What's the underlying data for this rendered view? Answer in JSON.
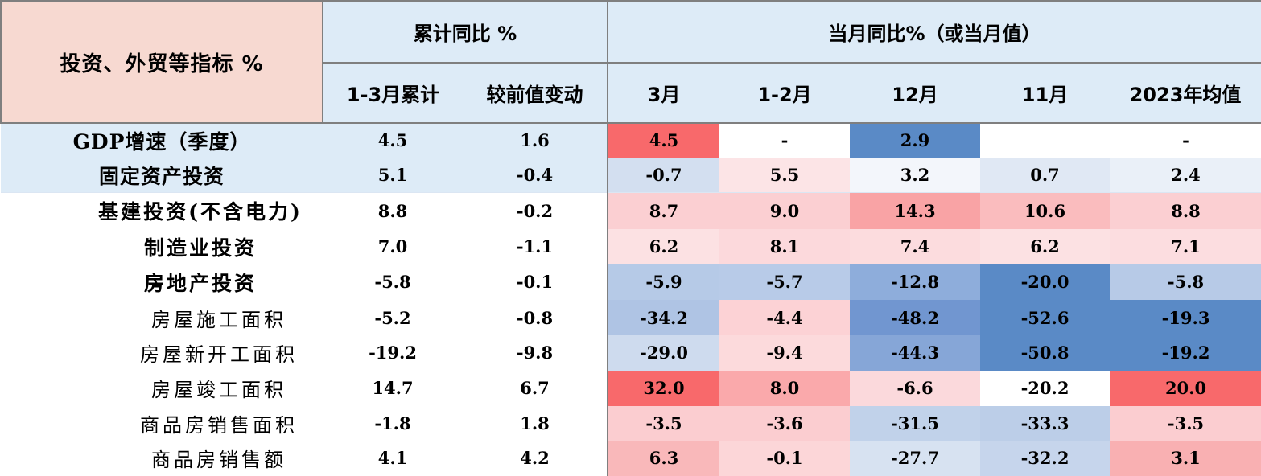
{
  "table": {
    "corner_label": "投资、外贸等指标 %",
    "group_headers": {
      "cumulative": "累计同比 %",
      "monthly": "当月同比%（或当月值）"
    },
    "column_headers": [
      "1-3月累计",
      "较前值变动",
      "3月",
      "1-2月",
      "12月",
      "11月",
      "2023年均值"
    ],
    "rows": [
      {
        "label": "GDP增速（季度）",
        "level": 0,
        "highlight": true,
        "cells": [
          "4.5",
          "1.6",
          "4.5",
          "-",
          "2.9",
          "",
          "-"
        ],
        "colors": [
          "",
          "",
          "#f8696b",
          "#ffffff",
          "#5a8ac6",
          "#ffffff",
          "#ffffff"
        ]
      },
      {
        "label": "固定资产投资",
        "level": 0,
        "highlight": true,
        "cells": [
          "5.1",
          "-0.4",
          "-0.7",
          "5.5",
          "3.2",
          "0.7",
          "2.4"
        ],
        "colors": [
          "",
          "",
          "#d3dff0",
          "#fce4e6",
          "#f3f6fb",
          "#e0e8f4",
          "#eaf0f8"
        ]
      },
      {
        "label": "基建投资(不含电力)",
        "level": 1,
        "highlight": false,
        "cells": [
          "8.8",
          "-0.2",
          "8.7",
          "9.0",
          "14.3",
          "10.6",
          "8.8"
        ],
        "colors": [
          "",
          "",
          "#fbcfd2",
          "#fbcfd2",
          "#f9a3a5",
          "#fabcbe",
          "#fbcfd2"
        ]
      },
      {
        "label": "制造业投资",
        "level": 1,
        "highlight": false,
        "cells": [
          "7.0",
          "-1.1",
          "6.2",
          "8.1",
          "7.4",
          "6.2",
          "7.1"
        ],
        "colors": [
          "",
          "",
          "#fce1e3",
          "#fcd9dc",
          "#fcdcde",
          "#fce1e3",
          "#fcdde0"
        ]
      },
      {
        "label": "房地产投资",
        "level": 1,
        "highlight": false,
        "cells": [
          "-5.8",
          "-0.1",
          "-5.9",
          "-5.7",
          "-12.8",
          "-20.0",
          "-5.8"
        ],
        "colors": [
          "",
          "",
          "#b6cae7",
          "#b8cbe8",
          "#8eaddb",
          "#5a8ac6",
          "#b7cae7"
        ]
      },
      {
        "label": "房屋施工面积",
        "level": 2,
        "highlight": false,
        "cells": [
          "-5.2",
          "-0.8",
          "-34.2",
          "-4.4",
          "-48.2",
          "-52.6",
          "-19.3"
        ],
        "colors": [
          "",
          "",
          "#afc4e4",
          "#fcd2d5",
          "#7196d0",
          "#5a8ac6",
          "#5a8ac6"
        ]
      },
      {
        "label": "房屋新开工面积",
        "level": 2,
        "highlight": false,
        "cells": [
          "-19.2",
          "-9.8",
          "-29.0",
          "-9.4",
          "-44.3",
          "-50.8",
          "-19.2"
        ],
        "colors": [
          "",
          "",
          "#cedbee",
          "#fcdadc",
          "#86a6d7",
          "#5a8ac6",
          "#5a8ac6"
        ]
      },
      {
        "label": "房屋竣工面积",
        "level": 2,
        "highlight": false,
        "cells": [
          "14.7",
          "6.7",
          "32.0",
          "8.0",
          "-6.6",
          "-20.2",
          "20.0"
        ],
        "colors": [
          "",
          "",
          "#f8696b",
          "#faa9ab",
          "#fbd9dc",
          "#ffffff",
          "#f8696b"
        ]
      },
      {
        "label": "商品房销售面积",
        "level": 2,
        "highlight": false,
        "cells": [
          "-1.8",
          "1.8",
          "-3.5",
          "-3.6",
          "-31.5",
          "-33.3",
          "-3.5"
        ],
        "colors": [
          "",
          "",
          "#fbcdd0",
          "#fbcdd0",
          "#c1d2ea",
          "#bccee8",
          "#fbcdd0"
        ]
      },
      {
        "label": "商品房销售额",
        "level": 2,
        "highlight": false,
        "cells": [
          "4.1",
          "4.2",
          "6.3",
          "-0.1",
          "-27.7",
          "-32.2",
          "3.1"
        ],
        "colors": [
          "",
          "",
          "#f9b8ba",
          "#fcd6d8",
          "#d7e2f1",
          "#c6d5ec",
          "#f9b0b2"
        ]
      }
    ]
  }
}
